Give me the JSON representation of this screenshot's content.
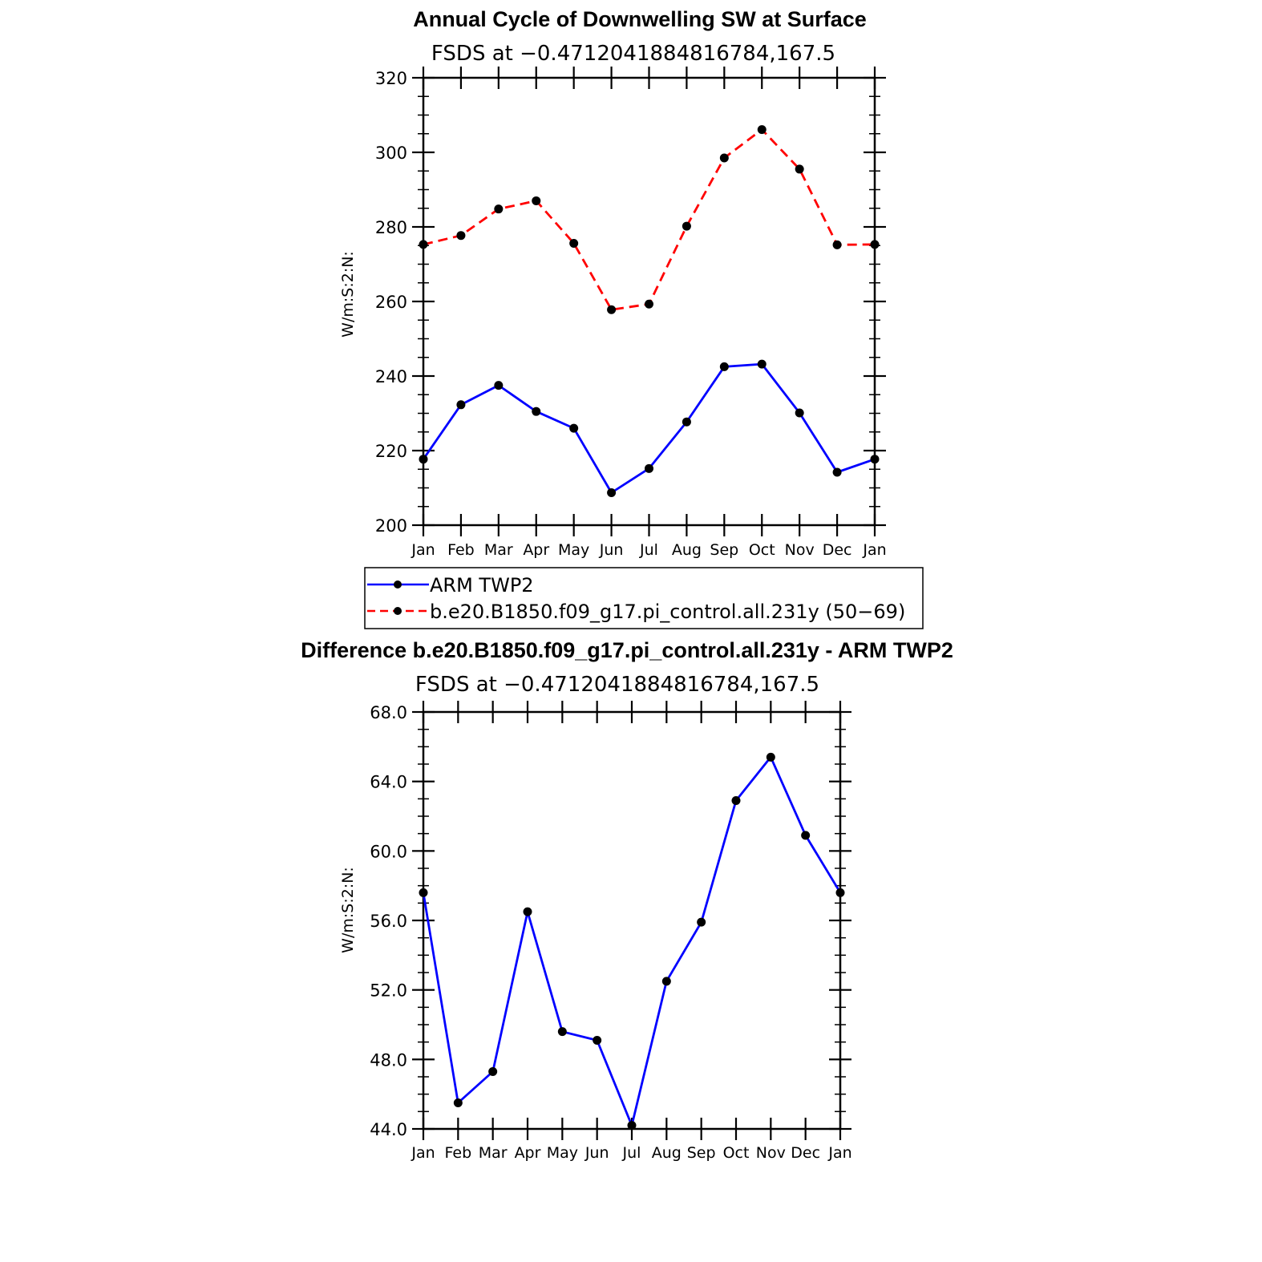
{
  "chart_data": [
    {
      "type": "line",
      "title": "Annual Cycle of Downwelling SW at Surface",
      "subtitle": "FSDS at −0.4712041884816784,167.5",
      "xlabel": "",
      "ylabel": "W/m:S:2:N:",
      "categories": [
        "Jan",
        "Feb",
        "Mar",
        "Apr",
        "May",
        "Jun",
        "Jul",
        "Aug",
        "Sep",
        "Oct",
        "Nov",
        "Dec",
        "Jan"
      ],
      "ylim": [
        200,
        320
      ],
      "yticks": [
        "200",
        "220",
        "240",
        "260",
        "280",
        "300",
        "320"
      ],
      "grid": false,
      "series": [
        {
          "name": "ARM TWP2",
          "color": "#0000ff",
          "dash": "solid",
          "values": [
            217.7,
            232.3,
            237.5,
            230.5,
            226.0,
            208.7,
            215.2,
            227.7,
            242.5,
            243.2,
            230.1,
            214.2,
            217.7
          ]
        },
        {
          "name": "b.e20.B1850.f09_g17.pi_control.all.231y (50−69)",
          "color": "#ff0000",
          "dash": "dashed",
          "values": [
            275.3,
            277.7,
            284.8,
            287.0,
            275.6,
            257.8,
            259.3,
            280.2,
            298.5,
            306.1,
            295.5,
            275.2,
            275.3
          ]
        }
      ],
      "legend": "below"
    },
    {
      "type": "line",
      "title": "Difference b.e20.B1850.f09_g17.pi_control.all.231y - ARM TWP2",
      "subtitle": "FSDS at −0.4712041884816784,167.5",
      "xlabel": "",
      "ylabel": "W/m:S:2:N:",
      "categories": [
        "Jan",
        "Feb",
        "Mar",
        "Apr",
        "May",
        "Jun",
        "Jul",
        "Aug",
        "Sep",
        "Oct",
        "Nov",
        "Dec",
        "Jan"
      ],
      "ylim": [
        44,
        68
      ],
      "yticks": [
        "44.0",
        "48.0",
        "52.0",
        "56.0",
        "60.0",
        "64.0",
        "68.0"
      ],
      "grid": false,
      "series": [
        {
          "color": "#0000ff",
          "dash": "solid",
          "values": [
            57.6,
            45.5,
            47.3,
            56.5,
            49.6,
            49.1,
            44.2,
            52.5,
            55.9,
            62.9,
            65.4,
            60.9,
            57.6
          ]
        }
      ]
    }
  ]
}
